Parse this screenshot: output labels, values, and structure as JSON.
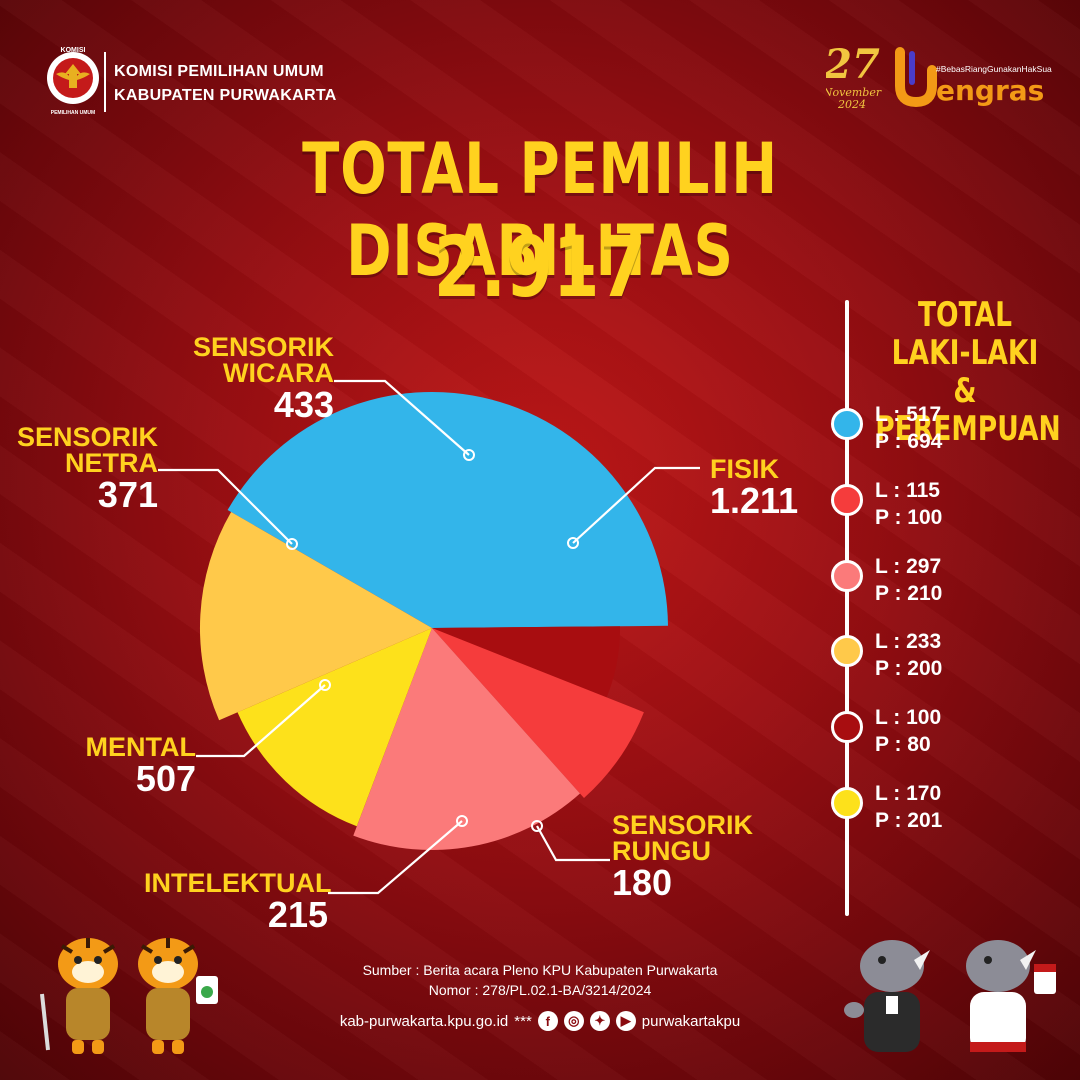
{
  "header": {
    "org_line1": "KOMISI PEMILIHAN UMUM",
    "org_line2": "KABUPATEN PURWAKARTA",
    "logo_text_top": "KOMISI",
    "logo_text_bottom": "PEMILIHAN UMUM",
    "event_day": "27",
    "event_month": "November",
    "event_year": "2024",
    "event_hashtag": "#BebasRiangGunakanHakSuara",
    "event_brand": "engras"
  },
  "title": "TOTAL PEMILIH DISABILITAS",
  "total": "2.917",
  "chart_data": {
    "type": "pie",
    "title": "TOTAL PEMILIH DISABILITAS",
    "total": 2917,
    "slices": [
      {
        "label": "FISIK",
        "value": 1211,
        "display": "1.211",
        "color": "#33b5ea"
      },
      {
        "label": "SENSORIK RUNGU",
        "value": 180,
        "display": "180",
        "color": "#a80d10"
      },
      {
        "label": "INTELEKTUAL",
        "value": 215,
        "display": "215",
        "color": "#f53c3c"
      },
      {
        "label": "MENTAL",
        "value": 507,
        "display": "507",
        "color": "#fb7a7a"
      },
      {
        "label": "SENSORIK NETRA",
        "value": 371,
        "display": "371",
        "color": "#fde11b"
      },
      {
        "label": "SENSORIK WICARA",
        "value": 433,
        "display": "433",
        "color": "#ffc94a"
      }
    ]
  },
  "labels": {
    "fisik": {
      "l1": "FISIK",
      "value": "1.211"
    },
    "rungu": {
      "l1": "SENSORIK",
      "l2": "RUNGU",
      "value": "180"
    },
    "intelektual": {
      "l1": "INTELEKTUAL",
      "value": "215"
    },
    "mental": {
      "l1": "MENTAL",
      "value": "507"
    },
    "netra": {
      "l1": "SENSORIK",
      "l2": "NETRA",
      "value": "371"
    },
    "wicara": {
      "l1": "SENSORIK",
      "l2": "WICARA",
      "value": "433"
    }
  },
  "sidebar": {
    "title_line1": "TOTAL LAKI-LAKI",
    "title_line2": "& PEREMPUAN",
    "items": [
      {
        "l": "L : 517",
        "p": "P : 694",
        "color": "#33b5ea"
      },
      {
        "l": "L : 115",
        "p": "P : 100",
        "color": "#f53c3c"
      },
      {
        "l": "L : 297",
        "p": "P : 210",
        "color": "#fb7a7a"
      },
      {
        "l": "L : 233",
        "p": "P : 200",
        "color": "#ffc94a"
      },
      {
        "l": "L : 100",
        "p": "P : 80",
        "color": "#a80d10"
      },
      {
        "l": "L : 170",
        "p": "P : 201",
        "color": "#fde11b"
      }
    ]
  },
  "footer": {
    "source_line1": "Sumber : Berita acara Pleno KPU Kabupaten Purwakarta",
    "source_line2": "Nomor : 278/PL.02.1-BA/3214/2024",
    "website": "kab-purwakarta.kpu.go.id",
    "separator": "***",
    "handle": "purwakartakpu"
  },
  "icons": [
    "kpu-garuda-logo",
    "facebook-icon",
    "instagram-icon",
    "twitter-icon",
    "youtube-icon",
    "tiger-mascot",
    "rhino-mascot"
  ]
}
